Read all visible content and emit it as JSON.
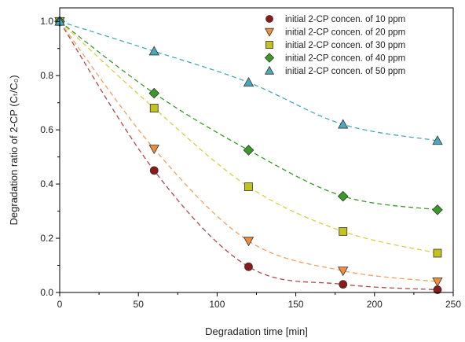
{
  "chart_data": {
    "type": "scatter",
    "xlabel": "Degradation time [min]",
    "ylabel": "Degradation ratio of 2-CP (Cₜ/C₀)",
    "xlim": [
      0,
      250
    ],
    "ylim": [
      0,
      1.05
    ],
    "xticks": [
      "0",
      "50",
      "100",
      "150",
      "200",
      "250"
    ],
    "yticks": [
      "0.0",
      "0.2",
      "0.4",
      "0.6",
      "0.8",
      "1.0"
    ],
    "grid": false,
    "legend_position": "top-right",
    "x": [
      0,
      60,
      120,
      180,
      240
    ],
    "series": [
      {
        "name": "initial 2-CP concen. of 10 ppm",
        "marker": "circle",
        "color": "#8b1a1a",
        "line_color": "#b04848",
        "values": [
          1.0,
          0.45,
          0.095,
          0.03,
          0.01
        ]
      },
      {
        "name": "initial 2-CP concen. of 20 ppm",
        "marker": "triangle-down",
        "color": "#f08c3a",
        "line_color": "#f2a060",
        "values": [
          1.0,
          0.53,
          0.19,
          0.08,
          0.04
        ]
      },
      {
        "name": "initial 2-CP concen. of 30 ppm",
        "marker": "square",
        "color": "#c4c21e",
        "line_color": "#d6d04a",
        "values": [
          1.0,
          0.68,
          0.39,
          0.225,
          0.145
        ]
      },
      {
        "name": "initial 2-CP concen. of 40 ppm",
        "marker": "diamond",
        "color": "#3a9a28",
        "line_color": "#3a9a28",
        "values": [
          1.0,
          0.735,
          0.525,
          0.355,
          0.305
        ]
      },
      {
        "name": "initial 2-CP concen. of 50 ppm",
        "marker": "triangle-up",
        "color": "#4aa8b8",
        "line_color": "#4aa8b8",
        "values": [
          1.0,
          0.89,
          0.775,
          0.62,
          0.56
        ]
      }
    ]
  }
}
